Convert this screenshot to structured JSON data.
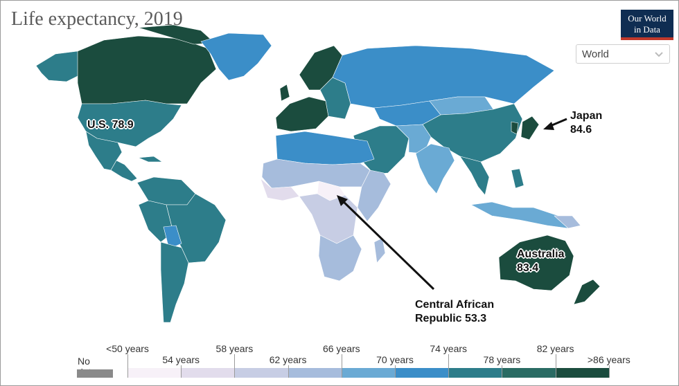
{
  "chart": {
    "title": "Life expectancy, 2019",
    "logo": {
      "line1": "Our World",
      "line2": "in Data"
    },
    "region_selector": {
      "selected": "World"
    }
  },
  "colors": {
    "no_data": "#8a8a8a",
    "scale": [
      "#f7f1f8",
      "#e2dcec",
      "#c7cde4",
      "#a6bcdc",
      "#6aaad4",
      "#3b8ec8",
      "#2d7d8a",
      "#2a6b63",
      "#1b4c3e"
    ]
  },
  "callouts": [
    {
      "id": "us",
      "country": "United States",
      "text": "U.S. 78.9",
      "value": 78.9
    },
    {
      "id": "japan",
      "country": "Japan",
      "line1": "Japan",
      "line2": "84.6",
      "value": 84.6
    },
    {
      "id": "australia",
      "country": "Australia",
      "line1": "Australia",
      "line2": "83.4",
      "value": 83.4
    },
    {
      "id": "car",
      "country": "Central African Republic",
      "line1": "Central African",
      "line2": "Republic 53.3",
      "value": 53.3
    }
  ],
  "legend": {
    "no_data_label": "No data",
    "top_labels": [
      "<50 years",
      "58 years",
      "66 years",
      "74 years",
      "82 years"
    ],
    "bottom_labels": [
      "54 years",
      "62 years",
      "70 years",
      "78 years",
      ">86 years"
    ]
  },
  "chart_data": {
    "type": "choropleth",
    "title": "Life expectancy, 2019",
    "unit": "years",
    "bins": [
      50,
      54,
      58,
      62,
      66,
      70,
      74,
      78,
      82,
      86
    ],
    "highlighted_values": [
      {
        "country": "United States",
        "value": 78.9
      },
      {
        "country": "Japan",
        "value": 84.6
      },
      {
        "country": "Australia",
        "value": 83.4
      },
      {
        "country": "Central African Republic",
        "value": 53.3
      }
    ]
  }
}
